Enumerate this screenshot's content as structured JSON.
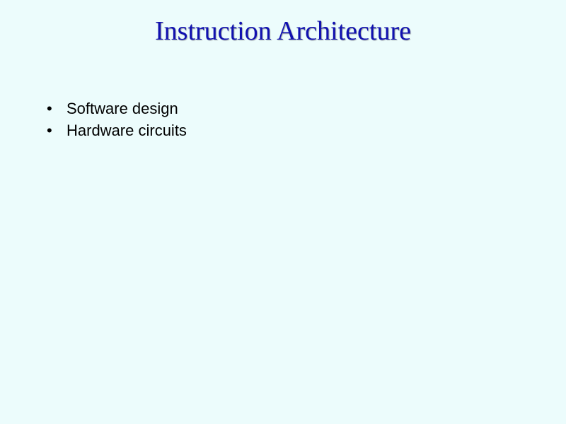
{
  "slide": {
    "background_color": "#ecfcfc",
    "title": {
      "text": "Instruction Architecture",
      "color": "#1010b0",
      "font_family": "Times New Roman",
      "font_size": 38
    },
    "bullets": [
      {
        "text": "Software design"
      },
      {
        "text": "Hardware circuits"
      }
    ],
    "bullet_style": {
      "color": "#000000",
      "font_size": 22,
      "marker": "•"
    }
  }
}
